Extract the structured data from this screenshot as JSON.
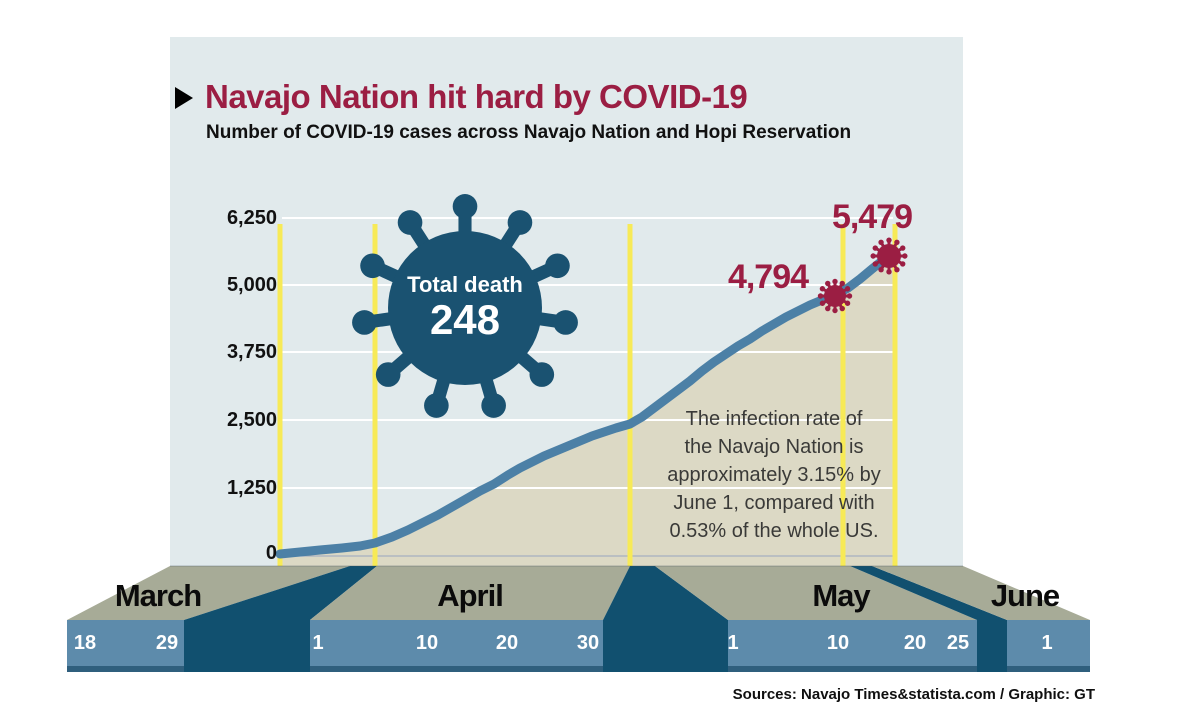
{
  "header": {
    "title": "Navajo Nation hit hard by COVID-19",
    "subtitle": "Number of COVID-19 cases across Navajo Nation and Hopi Reservation"
  },
  "y_axis": {
    "ticks": [
      "6,250",
      "5,000",
      "3,750",
      "2,500",
      "1,250",
      "0"
    ]
  },
  "x_axis": {
    "months": [
      {
        "label": "March",
        "dates": [
          "18",
          "29"
        ]
      },
      {
        "label": "April",
        "dates": [
          "1",
          "10",
          "20",
          "30"
        ]
      },
      {
        "label": "May",
        "dates": [
          "1",
          "10",
          "20",
          "25"
        ]
      },
      {
        "label": "June",
        "dates": [
          "1"
        ]
      }
    ]
  },
  "virus_badge": {
    "label": "Total death",
    "value": "248"
  },
  "callouts": [
    {
      "value": "4,794"
    },
    {
      "value": "5,479"
    }
  ],
  "annotation": {
    "lines": [
      "The infection rate of",
      "the Navajo Nation is",
      "approximately 3.15% by",
      "June 1, compared with",
      "0.53% of the whole US."
    ]
  },
  "footer": {
    "source": "Sources: Navajo Times&statista.com / Graphic: GT"
  },
  "colors": {
    "panel": "#E1EAEC",
    "area_fill": "#DCD9C5",
    "line": "#4C80A6",
    "yellow": "#F7EA57",
    "gridline": "#FFFFFF",
    "olive": "#A7AB97",
    "bar_blue": "#5D8BAB",
    "bar_dark": "#11506F",
    "maroon": "#9B1E43",
    "virus_navy": "#1A5271"
  },
  "chart_data": {
    "type": "area",
    "title": "Navajo Nation hit hard by COVID-19",
    "subtitle": "Number of COVID-19 cases across Navajo Nation and Hopi Reservation",
    "x": [
      "Mar 18",
      "Mar 29",
      "Apr 1",
      "Apr 10",
      "Apr 20",
      "Apr 30",
      "May 1",
      "May 10",
      "May 20",
      "May 25",
      "Jun 1"
    ],
    "values": [
      0,
      90,
      220,
      900,
      1750,
      2300,
      2400,
      3700,
      4794,
      5100,
      5479
    ],
    "labeled_points": [
      {
        "x": "May 20",
        "value": 4794,
        "label": "4,794"
      },
      {
        "x": "Jun 1",
        "value": 5479,
        "label": "5,479"
      }
    ],
    "total_deaths": 248,
    "ylim": [
      0,
      6250
    ],
    "yticks": [
      0,
      1250,
      2500,
      3750,
      5000,
      6250
    ],
    "grid": "horizontal white gridlines; vertical yellow lines at Mar 18, Apr 1, May 1, May 20, Jun 1",
    "legend": "none",
    "note": "unlabeled values estimated from gridlines",
    "annotations": [
      "Total death 248",
      "The infection rate of the Navajo Nation is approximately 3.15% by June 1, compared with 0.53% of the whole US."
    ]
  }
}
